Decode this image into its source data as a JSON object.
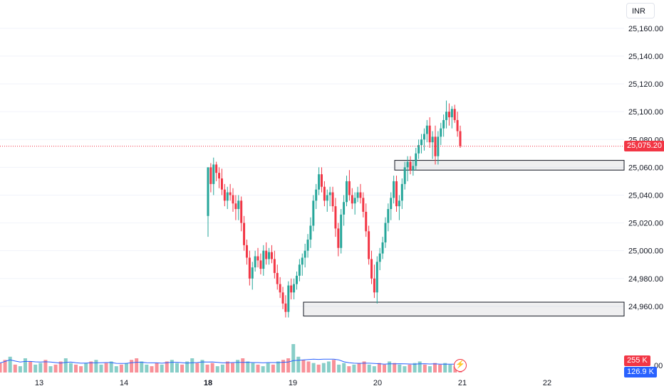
{
  "currency": "INR",
  "colors": {
    "up": "#26a69a",
    "down": "#f23645",
    "grid": "#f0f3fa",
    "volume_ma": "#2962ff",
    "price_line": "#f23645",
    "volume_tag": "#f23645",
    "volume_ma_tag": "#2962ff"
  },
  "icons": {
    "realtime": "lightning-icon"
  },
  "chart_data": {
    "type": "candlestick",
    "y_ticks": [
      "25,160.00",
      "25,140.00",
      "25,120.00",
      "25,100.00",
      "25,080.00",
      "25,060.00",
      "25,040.00",
      "25,020.00",
      "25,000.00",
      "24,980.00",
      "24,960.00"
    ],
    "ylim": [
      24940,
      25164
    ],
    "x_ticks": [
      {
        "label": "13",
        "bold": false
      },
      {
        "label": "14",
        "bold": false
      },
      {
        "label": "18",
        "bold": true
      },
      {
        "label": "19",
        "bold": false
      },
      {
        "label": "20",
        "bold": false
      },
      {
        "label": "21",
        "bold": false
      },
      {
        "label": "22",
        "bold": false
      }
    ],
    "last_price": 25075.2,
    "last_price_label": "25,075.20",
    "volume_label": "255 K",
    "volume_ma_label": "126.9 K",
    "volume_axis_label": "00",
    "zones": [
      {
        "from": 25058,
        "to": 25065
      },
      {
        "from": 24953,
        "to": 24963
      }
    ],
    "candles": [
      [
        25025,
        25060,
        25010,
        25060
      ],
      [
        25060,
        25063,
        25042,
        25048
      ],
      [
        25048,
        25067,
        25040,
        25062
      ],
      [
        25062,
        25064,
        25050,
        25056
      ],
      [
        25056,
        25060,
        25045,
        25052
      ],
      [
        25052,
        25059,
        25040,
        25044
      ],
      [
        25044,
        25048,
        25032,
        25036
      ],
      [
        25036,
        25046,
        25030,
        25042
      ],
      [
        25042,
        25048,
        25036,
        25040
      ],
      [
        25040,
        25045,
        25028,
        25034
      ],
      [
        25034,
        25040,
        25022,
        25030
      ],
      [
        25030,
        25040,
        25022,
        25036
      ],
      [
        25036,
        25039,
        25014,
        25020
      ],
      [
        25020,
        25025,
        25000,
        25004
      ],
      [
        25004,
        25008,
        24990,
        24995
      ],
      [
        24995,
        25000,
        24975,
        24980
      ],
      [
        24980,
        24992,
        24972,
        24988
      ],
      [
        24988,
        25000,
        24985,
        24996
      ],
      [
        24996,
        25002,
        24988,
        24993
      ],
      [
        24993,
        24998,
        24983,
        24987
      ],
      [
        24987,
        25004,
        24982,
        25000
      ],
      [
        25000,
        25006,
        24990,
        24994
      ],
      [
        24994,
        25002,
        24990,
        24999
      ],
      [
        24999,
        25004,
        24991,
        24994
      ],
      [
        24994,
        25000,
        24980,
        24984
      ],
      [
        24984,
        24990,
        24972,
        24976
      ],
      [
        24976,
        24981,
        24966,
        24970
      ],
      [
        24970,
        24974,
        24958,
        24962
      ],
      [
        24962,
        24968,
        24952,
        24956
      ],
      [
        24956,
        24978,
        24952,
        24975
      ],
      [
        24975,
        24980,
        24965,
        24970
      ],
      [
        24970,
        24980,
        24965,
        24976
      ],
      [
        24976,
        24985,
        24972,
        24982
      ],
      [
        24982,
        24994,
        24978,
        24990
      ],
      [
        24990,
        24998,
        24982,
        24995
      ],
      [
        24995,
        25005,
        24988,
        25000
      ],
      [
        25000,
        25012,
        24995,
        25008
      ],
      [
        25008,
        25024,
        25002,
        25018
      ],
      [
        25018,
        25040,
        25014,
        25036
      ],
      [
        25036,
        25048,
        25030,
        25044
      ],
      [
        25044,
        25060,
        25040,
        25055
      ],
      [
        25055,
        25060,
        25042,
        25046
      ],
      [
        25046,
        25050,
        25032,
        25036
      ],
      [
        25036,
        25044,
        25028,
        25040
      ],
      [
        25040,
        25046,
        25032,
        25042
      ],
      [
        25042,
        25046,
        25028,
        25032
      ],
      [
        25032,
        25038,
        25010,
        25016
      ],
      [
        25016,
        25020,
        24996,
        25002
      ],
      [
        25002,
        25030,
        24998,
        25026
      ],
      [
        25026,
        25040,
        25018,
        25035
      ],
      [
        25035,
        25054,
        25032,
        25050
      ],
      [
        25050,
        25058,
        25036,
        25040
      ],
      [
        25040,
        25045,
        25030,
        25034
      ],
      [
        25034,
        25042,
        25026,
        25038
      ],
      [
        25038,
        25046,
        25035,
        25042
      ],
      [
        25042,
        25048,
        25034,
        25038
      ],
      [
        25038,
        25042,
        25024,
        25028
      ],
      [
        25028,
        25034,
        25010,
        25014
      ],
      [
        25014,
        25018,
        24990,
        24994
      ],
      [
        24994,
        25000,
        24976,
        24980
      ],
      [
        24980,
        24990,
        24966,
        24970
      ],
      [
        24970,
        24996,
        24962,
        24992
      ],
      [
        24992,
        25002,
        24986,
        24998
      ],
      [
        24998,
        25010,
        24994,
        25006
      ],
      [
        25006,
        25024,
        25002,
        25020
      ],
      [
        25020,
        25034,
        25014,
        25030
      ],
      [
        25030,
        25042,
        25022,
        25038
      ],
      [
        25038,
        25054,
        25034,
        25050
      ],
      [
        25050,
        25054,
        25028,
        25032
      ],
      [
        25032,
        25040,
        25022,
        25036
      ],
      [
        25036,
        25052,
        25030,
        25048
      ],
      [
        25048,
        25064,
        25044,
        25060
      ],
      [
        25060,
        25068,
        25050,
        25064
      ],
      [
        25064,
        25068,
        25055,
        25058
      ],
      [
        25058,
        25065,
        25054,
        25061
      ],
      [
        25061,
        25074,
        25058,
        25070
      ],
      [
        25070,
        25080,
        25066,
        25076
      ],
      [
        25076,
        25084,
        25070,
        25080
      ],
      [
        25080,
        25088,
        25072,
        25084
      ],
      [
        25084,
        25094,
        25078,
        25090
      ],
      [
        25090,
        25096,
        25074,
        25078
      ],
      [
        25078,
        25086,
        25066,
        25082
      ],
      [
        25082,
        25090,
        25062,
        25068
      ],
      [
        25068,
        25086,
        25062,
        25082
      ],
      [
        25082,
        25092,
        25076,
        25088
      ],
      [
        25088,
        25098,
        25082,
        25094
      ],
      [
        25094,
        25108,
        25088,
        25100
      ],
      [
        25100,
        25106,
        25090,
        25096
      ],
      [
        25096,
        25104,
        25088,
        25102
      ],
      [
        25102,
        25105,
        25092,
        25094
      ],
      [
        25094,
        25100,
        25082,
        25086
      ],
      [
        25086,
        25090,
        25074,
        25075.2
      ]
    ],
    "volumes": [
      0.6,
      0.8,
      1.0,
      0.5,
      0.4,
      0.9,
      0.7,
      0.5,
      0.6,
      0.8,
      0.4,
      0.5,
      0.7,
      0.9,
      0.6,
      0.5,
      0.4,
      0.6,
      0.7,
      0.8,
      0.5,
      0.6,
      0.7,
      0.4,
      0.5,
      0.6,
      0.8,
      0.9,
      0.7,
      0.5,
      0.4,
      0.6,
      0.5,
      0.7,
      0.8,
      0.6,
      0.5,
      0.7,
      0.9,
      0.6,
      0.8,
      0.5,
      0.6,
      0.4,
      0.5,
      0.7,
      0.6,
      0.8,
      0.9,
      0.7,
      0.6,
      0.5,
      0.4,
      0.6,
      0.5,
      0.7,
      0.8,
      0.9,
      1.8,
      1.0,
      0.8,
      0.7,
      0.6,
      0.5,
      0.6,
      0.7,
      0.8,
      0.5,
      0.6,
      0.4,
      0.5,
      0.6,
      0.7,
      0.5,
      0.4,
      0.6,
      0.5,
      0.7,
      0.6,
      0.5,
      0.4,
      0.5,
      0.6,
      0.7,
      0.5,
      0.4,
      0.6,
      0.5,
      0.6,
      0.5,
      0.4,
      0.5
    ]
  }
}
